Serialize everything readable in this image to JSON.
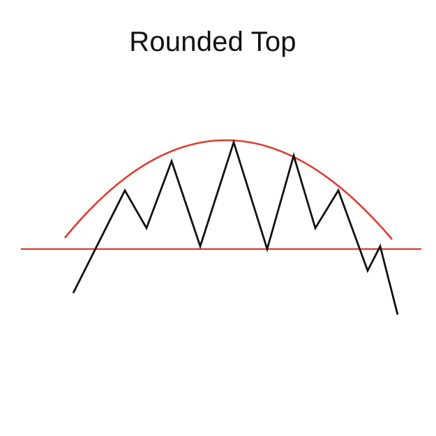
{
  "title": "Rounded Top",
  "colors": {
    "background": "#ffffff",
    "price_line": "#111111",
    "pattern_lines": "#e03a2c"
  }
}
